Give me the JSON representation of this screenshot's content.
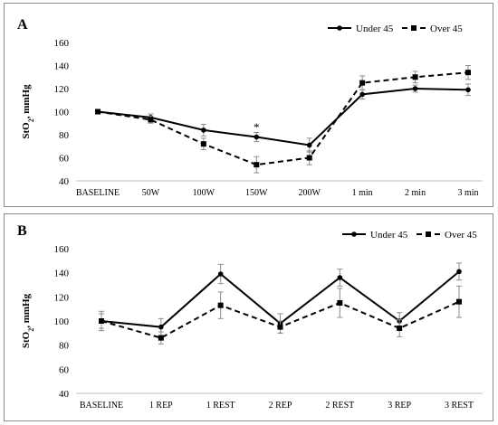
{
  "chart_data": [
    {
      "type": "line",
      "panel_label": "A",
      "ylabel": "StO",
      "ylabel_sub": "2",
      "ylabel_rest": ", mmHg",
      "ylim": [
        40,
        160
      ],
      "yticks": [
        40,
        60,
        80,
        100,
        120,
        140,
        160
      ],
      "categories": [
        "BASELINE",
        "50W",
        "100W",
        "150W",
        "200W",
        "1 min",
        "2 min",
        "3 min"
      ],
      "series": [
        {
          "name": "Under 45",
          "style": "solid",
          "marker": "circle",
          "values": [
            100,
            95,
            84,
            78,
            71,
            115,
            120,
            119
          ],
          "errors": [
            0,
            3,
            5,
            4,
            6,
            4,
            3,
            5
          ]
        },
        {
          "name": "Over 45",
          "style": "dashed",
          "marker": "square",
          "values": [
            100,
            93,
            72,
            54,
            60,
            125,
            130,
            134
          ],
          "errors": [
            0,
            3,
            5,
            7,
            6,
            6,
            5,
            6
          ]
        }
      ],
      "annotations": [
        {
          "text": "*",
          "category": "150W",
          "y": 87
        }
      ],
      "legend_position": "top-right",
      "grid": false
    },
    {
      "type": "line",
      "panel_label": "B",
      "ylabel": "StO",
      "ylabel_sub": "2",
      "ylabel_rest": ", mmHg",
      "ylim": [
        40,
        160
      ],
      "yticks": [
        40,
        60,
        80,
        100,
        120,
        140,
        160
      ],
      "categories": [
        "BASELINE",
        "1 REP",
        "1 REST",
        "2 REP",
        "2 REST",
        "3 REP",
        "3 REST"
      ],
      "series": [
        {
          "name": "Under 45",
          "style": "solid",
          "marker": "circle",
          "values": [
            100,
            95,
            139,
            98,
            136,
            100,
            141
          ],
          "errors": [
            8,
            7,
            8,
            8,
            7,
            7,
            7
          ]
        },
        {
          "name": "Over 45",
          "style": "dashed",
          "marker": "square",
          "values": [
            100,
            86,
            113,
            95,
            115,
            94,
            116
          ],
          "errors": [
            6,
            5,
            11,
            5,
            12,
            7,
            13
          ]
        }
      ],
      "legend_position": "top-right",
      "grid": false
    }
  ]
}
